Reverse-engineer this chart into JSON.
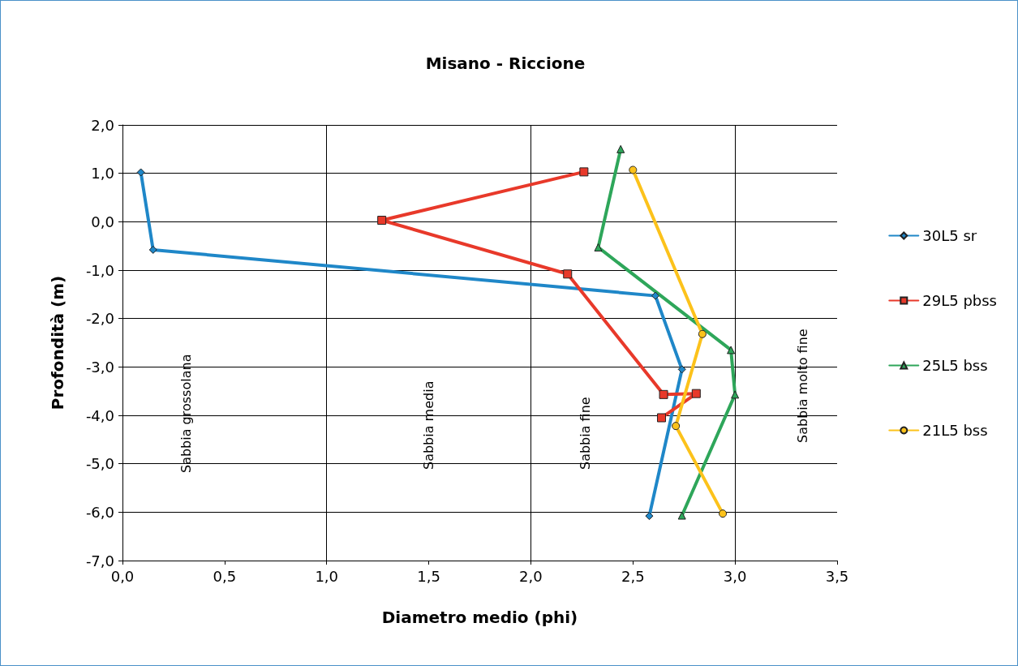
{
  "chart_data": {
    "type": "line",
    "title": "Misano - Riccione",
    "xlabel": "Diametro medio (phi)",
    "ylabel": "Profondità (m)",
    "xlim": [
      0,
      3.5
    ],
    "xticks": [
      {
        "value": 0,
        "label": "0,0"
      },
      {
        "value": 0.5,
        "label": "0,5"
      },
      {
        "value": 1,
        "label": "1,0"
      },
      {
        "value": 1.5,
        "label": "1,5"
      },
      {
        "value": 2,
        "label": "2,0"
      },
      {
        "value": 2.5,
        "label": "2,5"
      },
      {
        "value": 3,
        "label": "3,0"
      },
      {
        "value": 3.5,
        "label": "3,5"
      }
    ],
    "ylim": [
      -7,
      2
    ],
    "yticks": [
      {
        "value": -7,
        "label": "-7,0"
      },
      {
        "value": -6,
        "label": "-6,0"
      },
      {
        "value": -5,
        "label": "-5,0"
      },
      {
        "value": -4,
        "label": "-4,0"
      },
      {
        "value": -3,
        "label": "-3,0"
      },
      {
        "value": -2,
        "label": "-2,0"
      },
      {
        "value": -1,
        "label": "-1,0"
      },
      {
        "value": 0,
        "label": "0,0"
      },
      {
        "value": 1,
        "label": "1,0"
      },
      {
        "value": 2,
        "label": "2,0"
      }
    ],
    "grid": true,
    "legend": "right",
    "line_style": "solid",
    "annotations": [
      "Sabbia grossolana",
      "Sabbia media",
      "Sabbia fine",
      "Sabbia molto fine"
    ],
    "series": [
      {
        "name": "30L5 sr",
        "color": "#1f87c8",
        "marker": "diamond",
        "x": [
          0.09,
          0.15,
          2.61,
          2.74,
          2.58
        ],
        "values": [
          1.02,
          -0.58,
          -1.53,
          -3.05,
          -6.08
        ]
      },
      {
        "name": "29L5 pbss",
        "color": "#e8392a",
        "marker": "square",
        "x": [
          2.26,
          1.27,
          2.18,
          2.65,
          2.81,
          2.64
        ],
        "values": [
          1.03,
          0.03,
          -1.08,
          -3.57,
          -3.55,
          -4.05
        ]
      },
      {
        "name": "25L5 bss",
        "color": "#2ea65a",
        "marker": "triangle",
        "x": [
          2.44,
          2.33,
          2.98,
          3.0,
          2.74
        ],
        "values": [
          1.5,
          -0.53,
          -2.65,
          -3.57,
          -6.07
        ]
      },
      {
        "name": "21L5 bss",
        "color": "#fcc21b",
        "marker": "circle",
        "x": [
          2.5,
          2.84,
          2.71,
          2.94
        ],
        "values": [
          1.07,
          -2.32,
          -4.22,
          -6.03
        ]
      }
    ]
  }
}
